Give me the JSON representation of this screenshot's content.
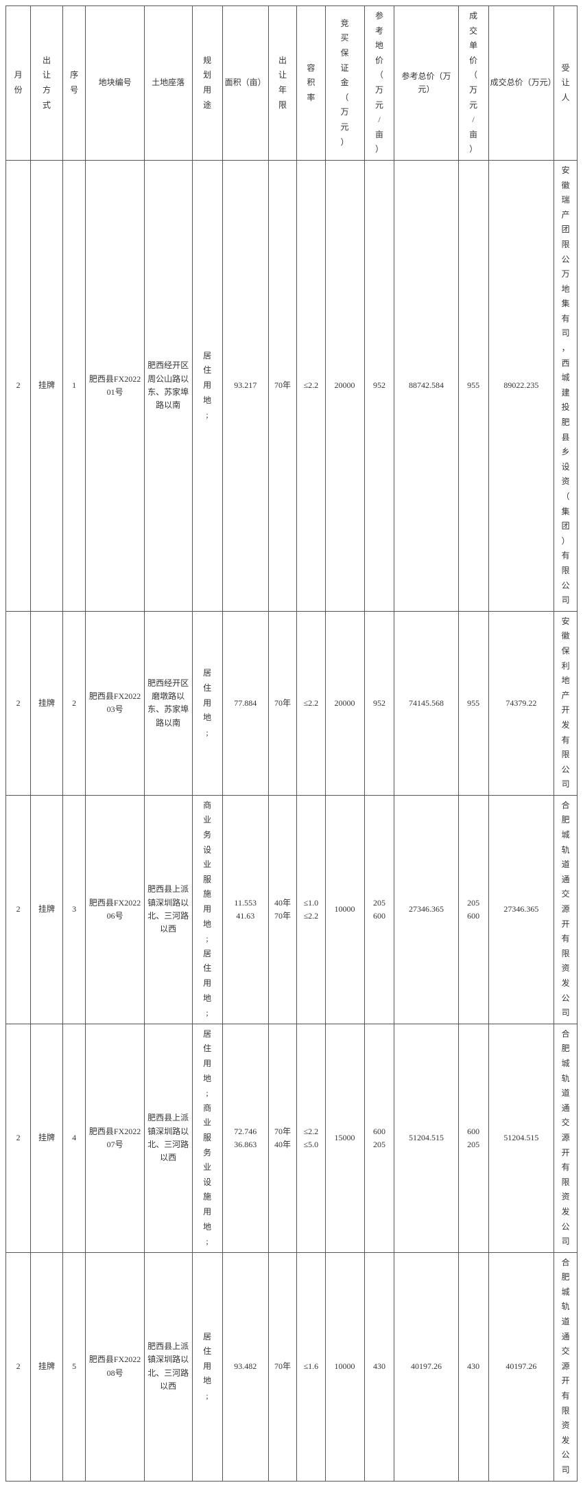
{
  "columns": {
    "month": "月份",
    "method": "出让方式",
    "seq": "序号",
    "parcel": "地块编号",
    "loc": "土地座落",
    "use": "规划用途",
    "area": "面积（亩）",
    "term": "出让年限",
    "far": "容积率",
    "deposit": "竞买保证金（万元）",
    "refunit": "参考地价（万元/亩）",
    "reftotal": "参考总价（万元）",
    "dealunit": "成交单价（万元/亩）",
    "dealtotal": "成交总价（万元）",
    "buyer": "受让人"
  },
  "rows": [
    {
      "month": "2",
      "method": "挂牌",
      "seq": "1",
      "parcel": "肥西县FX202201号",
      "loc": "肥西经开区周公山路以东、苏家埠路以南",
      "use": "居住用地;",
      "area": "93.217",
      "term": "70年",
      "far": "≤2.2",
      "deposit": "20000",
      "refunit": "952",
      "reftotal": "88742.584",
      "dealunit": "955",
      "dealtotal": "89022.235",
      "buyer": "安徽瑞产团限公万地集有司，西城建投肥县乡设资（集团）有限公司"
    },
    {
      "month": "2",
      "method": "挂牌",
      "seq": "2",
      "parcel": "肥西县FX202203号",
      "loc": "肥西经开区磨墩路以东、苏家埠路以南",
      "use": "居住用地;",
      "area": "77.884",
      "term": "70年",
      "far": "≤2.2",
      "deposit": "20000",
      "refunit": "952",
      "reftotal": "74145.568",
      "dealunit": "955",
      "dealtotal": "74379.22",
      "buyer": "安徽保利地产开发有限公司"
    },
    {
      "month": "2",
      "method": "挂牌",
      "seq": "3",
      "parcel": "肥西县FX202206号",
      "loc": "肥西县上派镇深圳路以北、三河路以西",
      "use": "商业务设业服施用地;居住用地;",
      "area": "11.553 41.63",
      "term": "40年 70年",
      "far": "≤1.0 ≤2.2",
      "deposit": "10000",
      "refunit": "205 600",
      "reftotal": "27346.365",
      "dealunit": "205 600",
      "dealtotal": "27346.365",
      "buyer": "合肥城轨道通交源开有限资发公司"
    },
    {
      "month": "2",
      "method": "挂牌",
      "seq": "4",
      "parcel": "肥西县FX202207号",
      "loc": "肥西县上派镇深圳路以北、三河路以西",
      "use": "居住用地;商业服务业设施用地;",
      "area": "72.746 36.863",
      "term": "70年 40年",
      "far": "≤2.2 ≤5.0",
      "deposit": "15000",
      "refunit": "600 205",
      "reftotal": "51204.515",
      "dealunit": "600 205",
      "dealtotal": "51204.515",
      "buyer": "合肥城轨道通交源开有限资发公司"
    },
    {
      "month": "2",
      "method": "挂牌",
      "seq": "5",
      "parcel": "肥西县FX202208号",
      "loc": "肥西县上派镇深圳路以北、三河路以西",
      "use": "居住用地;",
      "area": "93.482",
      "term": "70年",
      "far": "≤1.6",
      "deposit": "10000",
      "refunit": "430",
      "reftotal": "40197.26",
      "dealunit": "430",
      "dealtotal": "40197.26",
      "buyer": "合肥城轨道通交源开有限资发公司"
    }
  ]
}
